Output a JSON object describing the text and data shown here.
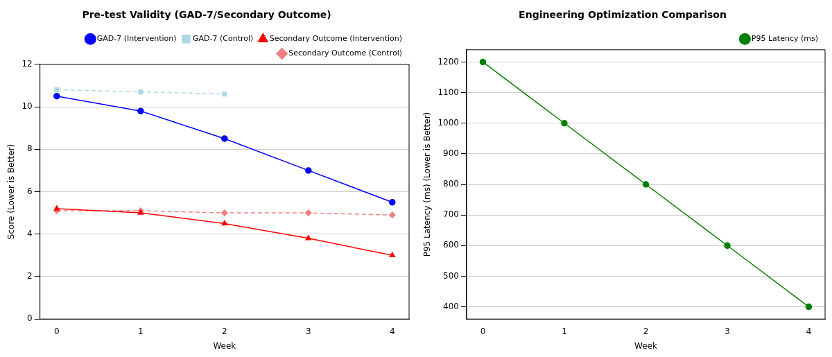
{
  "chart_data": [
    {
      "type": "line",
      "title": "Pre-test Validity (GAD-7/Secondary Outcome)",
      "xlabel": "Week",
      "ylabel": "Score (Lower is Better)",
      "x": [
        0,
        1,
        2,
        3,
        4
      ],
      "xlim": [
        -0.2,
        4.2
      ],
      "xticks": [
        0,
        1,
        2,
        3,
        4
      ],
      "ylim": [
        0,
        12
      ],
      "yticks": [
        0,
        2,
        4,
        6,
        8,
        10,
        12
      ],
      "grid": "y",
      "legend": "top right",
      "series": [
        {
          "name": "GAD-7 (Intervention)",
          "color": "#0000ff",
          "values": [
            10.5,
            9.8,
            8.5,
            7.0,
            5.5
          ],
          "marker": "circle",
          "line_style": "solid"
        },
        {
          "name": "GAD-7 (Control)",
          "color": "#add8e6",
          "values": [
            10.8,
            10.7,
            10.6,
            null,
            null
          ],
          "marker": "square",
          "line_style": "dashed"
        },
        {
          "name": "Secondary Outcome (Intervention)",
          "color": "#ff0000",
          "values": [
            5.2,
            5.0,
            4.5,
            3.8,
            3.0
          ],
          "marker": "triangle",
          "line_style": "solid"
        },
        {
          "name": "Secondary Outcome (Control)",
          "color": "#f08080",
          "values": [
            5.1,
            5.1,
            5.0,
            5.0,
            4.9
          ],
          "marker": "diamond",
          "line_style": "dashed"
        }
      ]
    },
    {
      "type": "line",
      "title": "Engineering Optimization Comparison",
      "xlabel": "Week",
      "ylabel": "P95 Latency (ms) (Lower is Better)",
      "x": [
        0,
        1,
        2,
        3,
        4
      ],
      "xlim": [
        -0.2,
        4.2
      ],
      "xticks": [
        0,
        1,
        2,
        3,
        4
      ],
      "ylim": [
        360,
        1240
      ],
      "yticks": [
        400,
        500,
        600,
        700,
        800,
        900,
        1000,
        1100,
        1200
      ],
      "grid": "y",
      "legend": "top right",
      "series": [
        {
          "name": "P95 Latency (ms)",
          "color": "#008000",
          "values": [
            1200,
            1000,
            800,
            600,
            400
          ],
          "marker": "circle",
          "line_style": "solid"
        }
      ]
    }
  ]
}
